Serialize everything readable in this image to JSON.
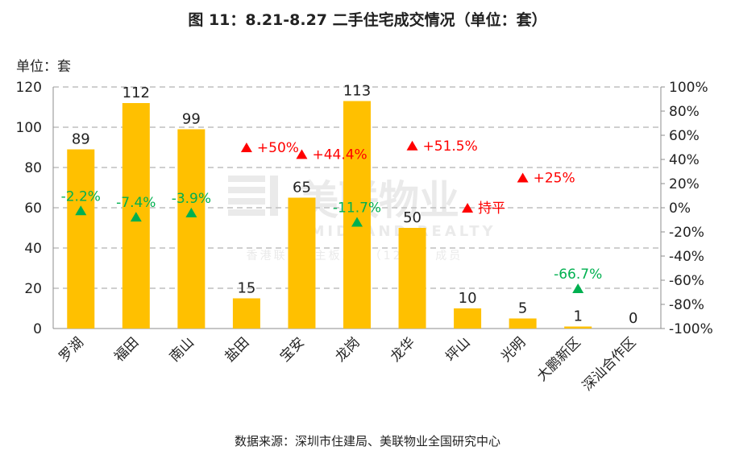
{
  "title": "图 11：8.21-8.27 二手住宅成交情况（单位：套）",
  "unit_label": "单位：套",
  "source": "数据来源：深圳市住建局、美联物业全国研究中心",
  "watermark": {
    "brand": "美联物业",
    "english": "MIDLAND REALTY",
    "sub": "香港联交所主板上市（1200）成员"
  },
  "chart_data": {
    "type": "bar",
    "title": "图 11：8.21-8.27 二手住宅成交情况（单位：套）",
    "categories": [
      "罗湖",
      "福田",
      "南山",
      "盐田",
      "宝安",
      "龙岗",
      "龙华",
      "坪山",
      "光明",
      "大鹏新区",
      "深汕合作区"
    ],
    "values": [
      89,
      112,
      99,
      15,
      65,
      113,
      50,
      10,
      5,
      1,
      0
    ],
    "value_labels": [
      "89",
      "112",
      "99",
      "15",
      "65",
      "113",
      "50",
      "10",
      "5",
      "1",
      "0"
    ],
    "change_pct": [
      -2.2,
      -7.4,
      -3.9,
      50,
      44.4,
      -11.7,
      51.5,
      0,
      25,
      -66.7,
      null
    ],
    "change_labels": [
      "-2.2%",
      "-7.4%",
      "-3.9%",
      "+50%",
      "+44.4%",
      "-11.7%",
      "+51.5%",
      "持平",
      "+25%",
      "-66.7%",
      ""
    ],
    "change_direction": [
      "down",
      "down",
      "down",
      "up",
      "up",
      "down",
      "up",
      "flat",
      "up",
      "down",
      ""
    ],
    "ylim": [
      0,
      120
    ],
    "yticks": [
      0,
      20,
      40,
      60,
      80,
      100,
      120
    ],
    "y2lim": [
      -100,
      100
    ],
    "y2ticks": [
      "100%",
      "80%",
      "60%",
      "40%",
      "20%",
      "0%",
      "-20%",
      "-40%",
      "-60%",
      "-80%",
      "-100%"
    ],
    "grid": true,
    "colors": {
      "bar": "#FFC000",
      "up": "#FF0000",
      "down": "#00B050",
      "text": "#222222",
      "grid": "#bfbfbf"
    }
  }
}
